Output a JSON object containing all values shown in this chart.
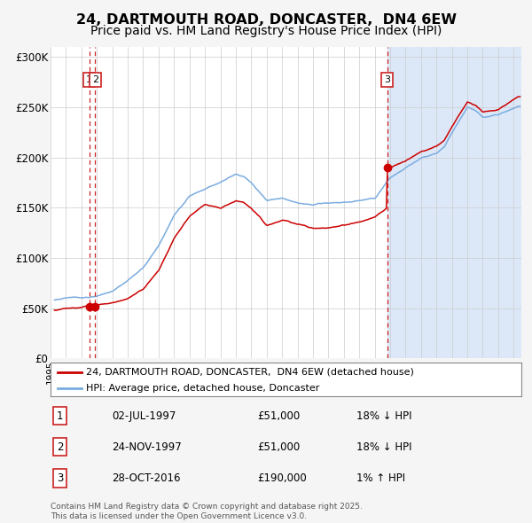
{
  "title_line1": "24, DARTMOUTH ROAD, DONCASTER,  DN4 6EW",
  "title_line2": "Price paid vs. HM Land Registry's House Price Index (HPI)",
  "legend_red": "24, DARTMOUTH ROAD, DONCASTER,  DN4 6EW (detached house)",
  "legend_blue": "HPI: Average price, detached house, Doncaster",
  "transactions": [
    {
      "num": 1,
      "date": "02-JUL-1997",
      "date_dec": 1997.5,
      "price": 51000,
      "hpi_rel": "18% ↓ HPI"
    },
    {
      "num": 2,
      "date": "24-NOV-1997",
      "date_dec": 1997.9,
      "price": 51000,
      "hpi_rel": "18% ↓ HPI"
    },
    {
      "num": 3,
      "date": "28-OCT-2016",
      "date_dec": 2016.82,
      "price": 190000,
      "hpi_rel": "1% ↑ HPI"
    }
  ],
  "footer": "Contains HM Land Registry data © Crown copyright and database right 2025.\nThis data is licensed under the Open Government Licence v3.0.",
  "background_color": "#f5f5f5",
  "plot_bg_color": "#ffffff",
  "shade_after_color": "#dce8f8",
  "red_line_color": "#cc0000",
  "blue_line_color": "#7aace0",
  "dashed_vline_color": "#cc2222",
  "grid_color": "#cccccc",
  "ylim": [
    0,
    310000
  ],
  "yticks": [
    0,
    50000,
    100000,
    150000,
    200000,
    250000,
    300000
  ],
  "ytick_labels": [
    "£0",
    "£50K",
    "£100K",
    "£150K",
    "£200K",
    "£250K",
    "£300K"
  ],
  "xlim_start": 1995.25,
  "xlim_end": 2025.5,
  "title_fontsize": 12,
  "subtitle_fontsize": 10
}
